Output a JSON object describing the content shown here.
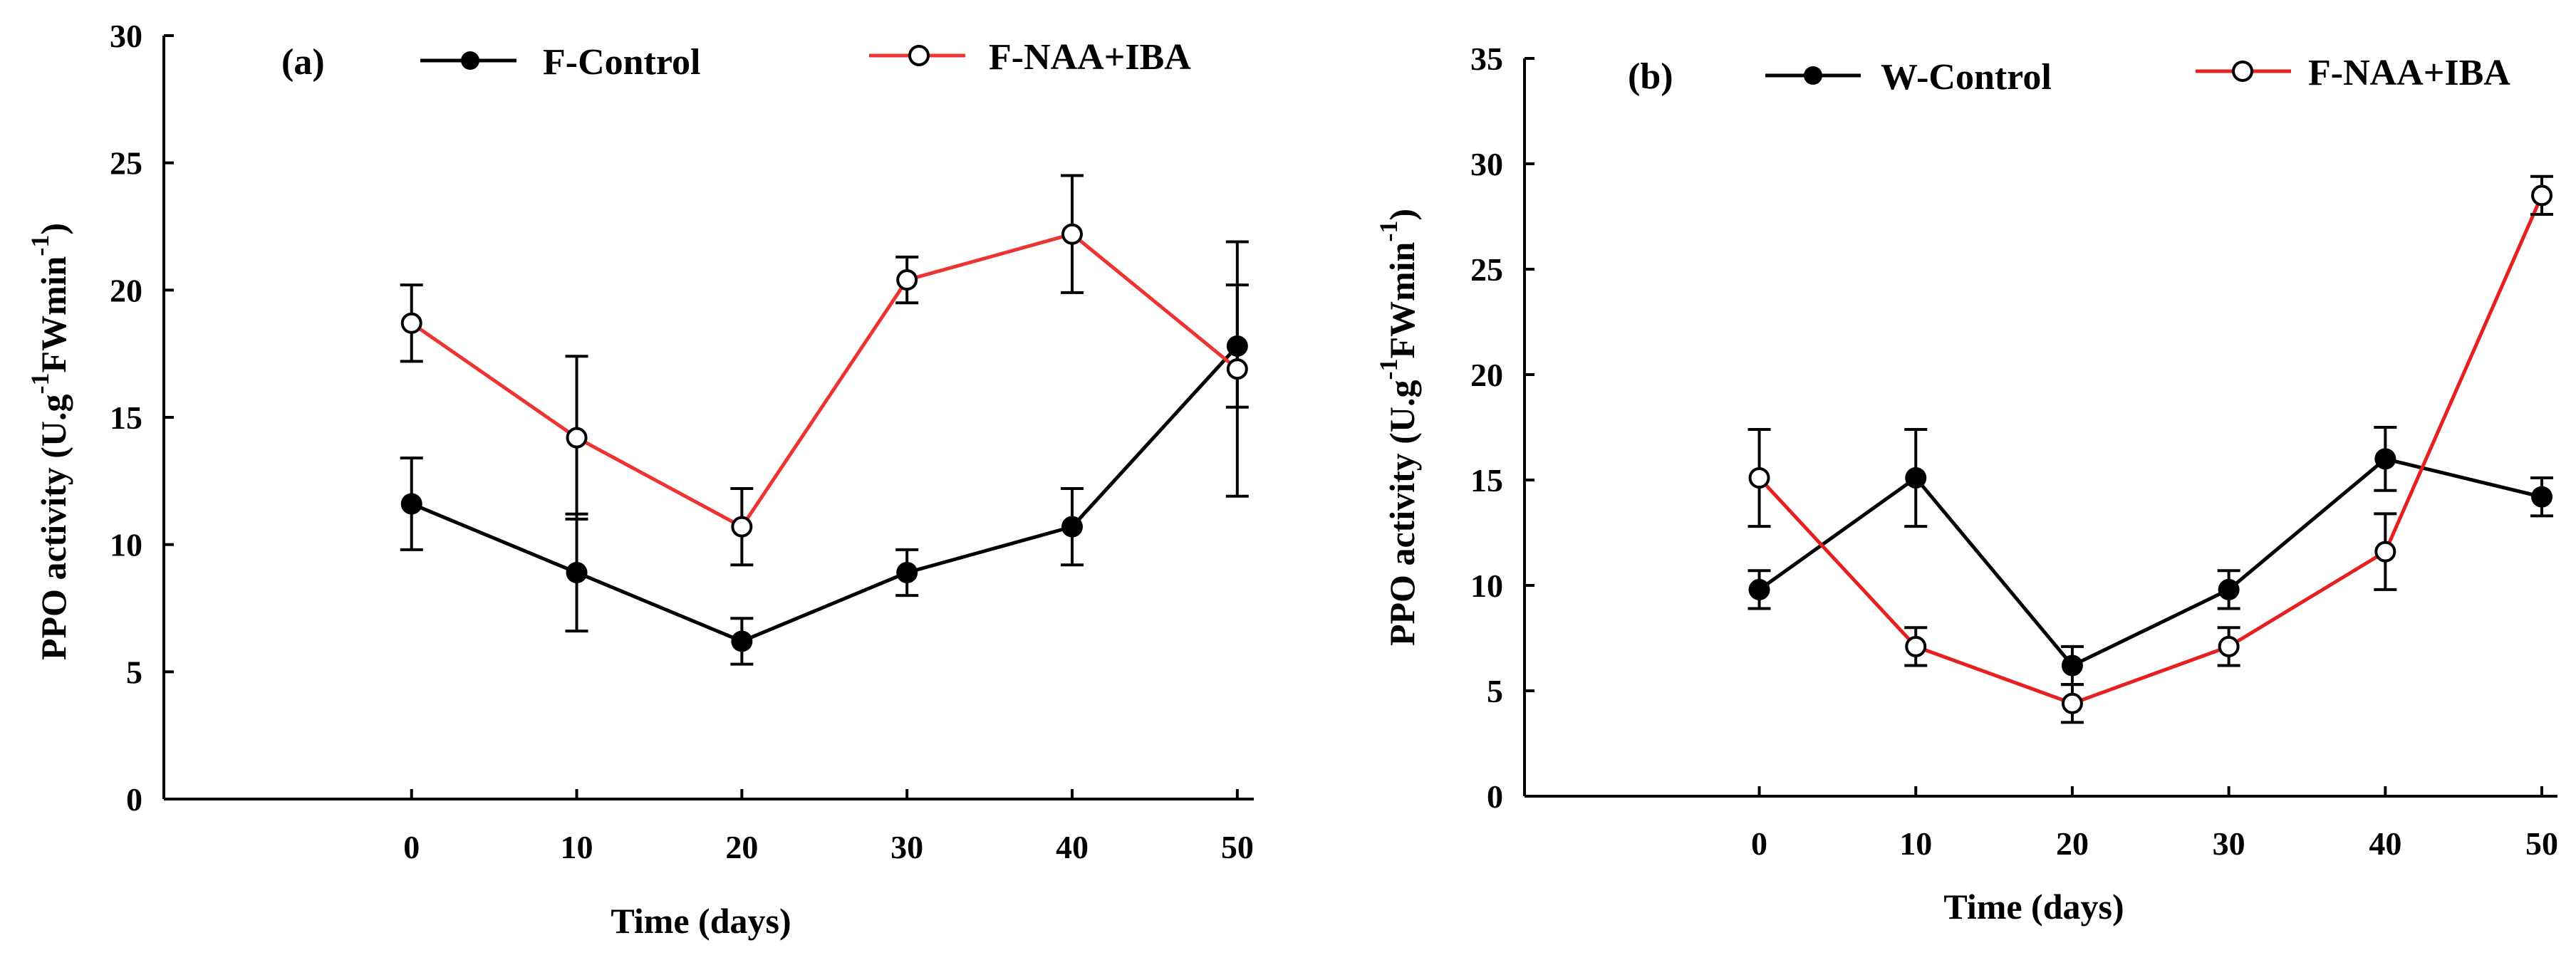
{
  "chart_data": [
    {
      "type": "line",
      "panel_label": "(a)",
      "xlabel": "Time (days)",
      "ylabel": {
        "prefix": "PPO activity  (U.g",
        "sup1": "-1",
        "mid": "FWmin",
        "sup2": "-1",
        "suffix": ")"
      },
      "x": [
        0,
        10,
        20,
        30,
        40,
        50
      ],
      "xticks": [
        "0",
        "10",
        "20",
        "30",
        "40",
        "50"
      ],
      "xlim": [
        -15,
        51
      ],
      "ylim": [
        0,
        30
      ],
      "yticks": [
        "0",
        "5",
        "10",
        "15",
        "20",
        "25",
        "30"
      ],
      "yticks_values": [
        0,
        5,
        10,
        15,
        20,
        25,
        30
      ],
      "series": [
        {
          "name": "F-Control",
          "color": "#000000",
          "marker": "filled",
          "values": [
            11.6,
            8.9,
            6.2,
            8.9,
            10.7,
            17.8
          ],
          "errors": [
            1.8,
            2.3,
            0.9,
            0.9,
            1.5,
            2.4
          ]
        },
        {
          "name": "F-NAA+IBA",
          "color": "#ee3333",
          "marker": "open",
          "values": [
            18.7,
            14.2,
            10.7,
            20.4,
            22.2,
            16.9
          ],
          "errors": [
            1.5,
            3.2,
            1.5,
            0.9,
            2.3,
            5.0
          ]
        }
      ]
    },
    {
      "type": "line",
      "panel_label": "(b)",
      "xlabel": "Time (days)",
      "ylabel": {
        "prefix": "PPO activity  (U.g",
        "sup1": "-1",
        "mid": "FWmin",
        "sup2": "-1",
        "suffix": ")"
      },
      "x": [
        0,
        10,
        20,
        30,
        40,
        50
      ],
      "xticks": [
        "0",
        "10",
        "20",
        "30",
        "40",
        "50"
      ],
      "xlim": [
        -15,
        51
      ],
      "ylim": [
        0,
        35
      ],
      "yticks": [
        "0",
        "5",
        "10",
        "15",
        "20",
        "25",
        "30",
        "35"
      ],
      "yticks_values": [
        0,
        5,
        10,
        15,
        20,
        25,
        30,
        35
      ],
      "series": [
        {
          "name": "W-Control",
          "color": "#000000",
          "marker": "filled",
          "values": [
            9.8,
            15.1,
            6.2,
            9.8,
            16.0,
            14.2
          ],
          "errors": [
            0.9,
            2.3,
            0.9,
            0.9,
            1.5,
            0.9
          ]
        },
        {
          "name": "F-NAA+IBA",
          "color": "#e62020",
          "marker": "open",
          "values": [
            15.1,
            7.1,
            4.4,
            7.1,
            11.6,
            28.5
          ],
          "errors": [
            2.3,
            0.9,
            0.9,
            0.9,
            1.8,
            0.9
          ]
        }
      ]
    }
  ]
}
